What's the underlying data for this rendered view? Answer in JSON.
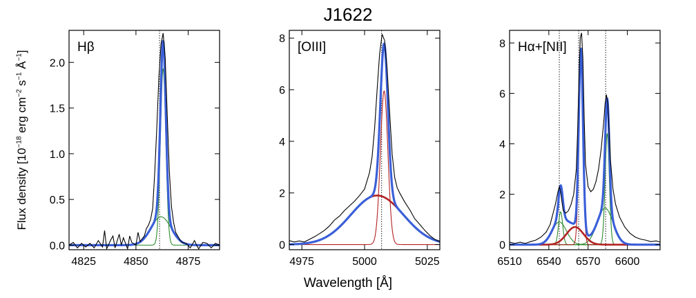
{
  "figure": {
    "title": "J1622",
    "ylabel": {
      "prefix": "Flux density [10",
      "exp1": "−18",
      "mid1": " erg cm",
      "exp2": "−2",
      "mid2": " s",
      "exp3": "−1",
      "mid3": " Å",
      "exp4": "−1",
      "suffix": "]"
    },
    "xlabel": "Wavelength [Å]"
  },
  "colors": {
    "data": "#000000",
    "total": "#3a5fd8",
    "narrow": "#2a8a2a",
    "broad": "#b22222",
    "ref": "#000000"
  },
  "chart_data": [
    {
      "type": "line",
      "label": "Hβ",
      "xlim": [
        4818,
        4890
      ],
      "ylim": [
        -0.05,
        2.35
      ],
      "xticks": [
        4825,
        4850,
        4875
      ],
      "yticks": [
        0.0,
        0.5,
        1.0,
        1.5,
        2.0
      ],
      "ytick_labels": [
        "0.0",
        "0.5",
        "1.0",
        "1.5",
        "2.0"
      ],
      "ref_lines": [
        4861.3
      ],
      "components": [
        {
          "role": "narrow",
          "color": "green",
          "amp": 1.93,
          "center": 4863.0,
          "sigma": 1.3
        },
        {
          "role": "narrow",
          "color": "green",
          "amp": 0.31,
          "center": 4862.0,
          "sigma": 4.8
        }
      ],
      "data": {
        "x": [
          4818,
          4820,
          4822,
          4824,
          4826,
          4828,
          4830,
          4832,
          4834,
          4835,
          4836,
          4838,
          4839,
          4840,
          4842,
          4843,
          4844,
          4846,
          4847,
          4848,
          4850,
          4851,
          4852,
          4854,
          4855,
          4856,
          4857,
          4858,
          4859,
          4860,
          4861,
          4862,
          4863,
          4864,
          4865,
          4866,
          4867,
          4868,
          4869,
          4870,
          4871,
          4872,
          4874,
          4876,
          4878,
          4879,
          4880,
          4882,
          4884,
          4886,
          4888,
          4890
        ],
        "y": [
          0.0,
          0.03,
          -0.03,
          0.02,
          -0.02,
          0.02,
          -0.03,
          0.05,
          -0.02,
          0.16,
          -0.04,
          0.06,
          0.1,
          -0.03,
          0.12,
          0.0,
          0.08,
          -0.04,
          0.1,
          0.03,
          0.0,
          0.14,
          0.04,
          0.1,
          0.18,
          0.22,
          0.28,
          0.4,
          0.8,
          1.3,
          1.85,
          2.2,
          2.32,
          2.05,
          1.4,
          0.8,
          0.42,
          0.25,
          0.14,
          0.1,
          0.06,
          0.03,
          0.02,
          -0.03,
          0.05,
          0.0,
          -0.04,
          0.03,
          0.02,
          -0.03,
          0.02,
          0.0
        ]
      }
    },
    {
      "type": "line",
      "label": "[OIII]",
      "xlim": [
        4970,
        5030
      ],
      "ylim": [
        -0.2,
        8.3
      ],
      "xticks": [
        4975,
        5000,
        5025
      ],
      "yticks": [
        0,
        2,
        4,
        6,
        8
      ],
      "ytick_labels": [
        "0",
        "2",
        "4",
        "6",
        "8"
      ],
      "ref_lines": [
        5006.8
      ],
      "components": [
        {
          "role": "broad",
          "color": "red",
          "amp": 1.9,
          "center": 5005.0,
          "sigma": 10.5,
          "weight": "thick"
        },
        {
          "role": "narrow",
          "color": "red",
          "amp": 5.95,
          "center": 5007.8,
          "sigma": 1.5,
          "weight": "thin"
        }
      ],
      "data": {
        "x": [
          4970,
          4972,
          4974,
          4976,
          4978,
          4980,
          4982,
          4984,
          4986,
          4988,
          4990,
          4992,
          4994,
          4996,
          4998,
          5000,
          5002,
          5003,
          5004,
          5005,
          5006,
          5007,
          5008,
          5009,
          5010,
          5011,
          5012,
          5013,
          5014,
          5016,
          5018,
          5020,
          5022,
          5024,
          5026,
          5028,
          5030
        ],
        "y": [
          0.15,
          0.1,
          0.14,
          0.1,
          0.2,
          0.3,
          0.42,
          0.55,
          0.72,
          0.95,
          1.1,
          1.32,
          1.5,
          1.68,
          1.9,
          2.15,
          2.8,
          3.4,
          4.5,
          6.0,
          7.4,
          8.15,
          7.9,
          6.8,
          5.1,
          3.5,
          2.6,
          2.2,
          2.0,
          1.65,
          1.35,
          1.0,
          0.78,
          0.55,
          0.35,
          0.2,
          0.12
        ]
      }
    },
    {
      "type": "line",
      "label": "Hα+[NII]",
      "xlim": [
        6510,
        6625
      ],
      "ylim": [
        -0.2,
        8.5
      ],
      "xticks": [
        6510,
        6540,
        6570,
        6600
      ],
      "yticks": [
        0,
        2,
        4,
        6,
        8
      ],
      "ytick_labels": [
        "0",
        "2",
        "4",
        "6",
        "8"
      ],
      "ref_lines": [
        6548.0,
        6562.8,
        6583.4
      ],
      "components": [
        {
          "role": "narrow",
          "color": "green",
          "amp": 1.3,
          "center": 6549.0,
          "sigma": 1.6
        },
        {
          "role": "narrow",
          "color": "green",
          "amp": 0.9,
          "center": 6548.0,
          "sigma": 5.5
        },
        {
          "role": "narrow",
          "color": "green",
          "amp": 4.4,
          "center": 6584.6,
          "sigma": 1.6
        },
        {
          "role": "narrow",
          "color": "green",
          "amp": 1.45,
          "center": 6583.0,
          "sigma": 6.0
        },
        {
          "role": "narrow",
          "color": "red",
          "amp": 7.2,
          "center": 6564.5,
          "sigma": 1.6,
          "weight": "thin"
        },
        {
          "role": "broad",
          "color": "red",
          "amp": 0.7,
          "center": 6560.0,
          "sigma": 6.5,
          "weight": "thick"
        }
      ],
      "data": {
        "x": [
          6510,
          6514,
          6518,
          6522,
          6526,
          6530,
          6534,
          6538,
          6541,
          6543,
          6545,
          6547,
          6548,
          6549,
          6550,
          6551,
          6553,
          6555,
          6557,
          6559,
          6561,
          6562,
          6563,
          6564,
          6565,
          6566,
          6567,
          6568,
          6570,
          6572,
          6574,
          6576,
          6578,
          6580,
          6582,
          6583,
          6584,
          6585,
          6586,
          6587,
          6589,
          6591,
          6594,
          6598,
          6602,
          6606,
          6610,
          6614,
          6618,
          6622,
          6625
        ],
        "y": [
          0.1,
          0.05,
          0.1,
          0.05,
          0.12,
          0.18,
          0.3,
          0.5,
          0.8,
          1.2,
          1.6,
          2.1,
          2.3,
          2.1,
          1.7,
          1.35,
          1.25,
          1.35,
          1.6,
          2.0,
          3.0,
          4.5,
          6.5,
          8.2,
          8.4,
          7.4,
          5.0,
          3.2,
          2.3,
          2.1,
          2.2,
          2.5,
          3.0,
          3.8,
          4.9,
          5.6,
          5.95,
          5.6,
          4.6,
          3.4,
          2.2,
          1.6,
          1.1,
          0.7,
          0.45,
          0.3,
          0.22,
          0.18,
          0.12,
          0.15,
          0.1
        ]
      }
    }
  ]
}
